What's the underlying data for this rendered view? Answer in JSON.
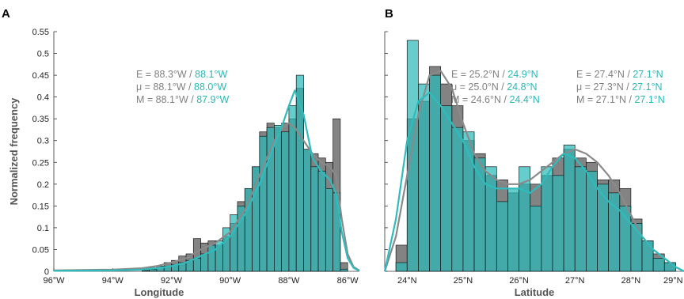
{
  "colors": {
    "gray": "#808080",
    "teal": "#2ab7b7",
    "gray_line": "#8a8a8a",
    "teal_line": "#2fbcbc"
  },
  "chart_data": [
    {
      "type": "bar",
      "panel": "A",
      "xlabel": "Longitude",
      "ylabel": "Normalized frequency",
      "xlim": [
        -96,
        -85.6
      ],
      "ylim": [
        0,
        0.55
      ],
      "xticks": [
        -96,
        -94,
        -92,
        -90,
        -88,
        -86
      ],
      "xtick_labels": [
        "96°W",
        "94°W",
        "92°W",
        "90°W",
        "88°W",
        "86°W"
      ],
      "yticks": [
        0,
        0.05,
        0.1,
        0.15,
        0.2,
        0.25,
        0.3,
        0.35,
        0.4,
        0.45,
        0.5,
        0.55
      ],
      "ytick_labels": [
        "0",
        "0.05",
        "0.1",
        "0.15",
        "0.2",
        "0.25",
        "0.3",
        "0.35",
        "0.4",
        "0.45",
        "0.5",
        "0.55"
      ],
      "bin_edges": [
        -93.0,
        -92.75,
        -92.5,
        -92.25,
        -92.0,
        -91.75,
        -91.5,
        -91.25,
        -91.0,
        -90.75,
        -90.5,
        -90.25,
        -90.0,
        -89.75,
        -89.5,
        -89.25,
        -89.0,
        -88.75,
        -88.5,
        -88.25,
        -88.0,
        -87.75,
        -87.5,
        -87.25,
        -87.0,
        -86.75,
        -86.5,
        -86.25,
        -86.0
      ],
      "series": [
        {
          "name": "",
          "color": "gray",
          "values": [
            0.005,
            0.008,
            0.012,
            0.02,
            0.025,
            0.035,
            0.04,
            0.075,
            0.065,
            0.07,
            0.06,
            0.08,
            0.11,
            0.16,
            0.19,
            0.24,
            0.32,
            0.34,
            0.33,
            0.34,
            0.35,
            0.42,
            0.28,
            0.27,
            0.26,
            0.25,
            0.35,
            0.02
          ]
        },
        {
          "name": "",
          "color": "teal",
          "values": [
            0.002,
            0.004,
            0.008,
            0.012,
            0.015,
            0.02,
            0.025,
            0.03,
            0.04,
            0.06,
            0.07,
            0.1,
            0.13,
            0.15,
            0.19,
            0.24,
            0.31,
            0.33,
            0.335,
            0.32,
            0.38,
            0.45,
            0.28,
            0.24,
            0.23,
            0.19,
            0.18,
            0.005
          ]
        }
      ],
      "curves": [
        {
          "color": "gray_line",
          "x": [
            -96,
            -94,
            -93,
            -92.5,
            -92,
            -91.5,
            -91,
            -90.5,
            -90,
            -89.5,
            -89,
            -88.5,
            -88.2,
            -88,
            -87.8,
            -87.5,
            -87.2,
            -86.9,
            -86.6,
            -86.4,
            -86.2,
            -86.0,
            -85.8,
            -85.6
          ],
          "y": [
            0.002,
            0.004,
            0.007,
            0.012,
            0.02,
            0.03,
            0.05,
            0.065,
            0.09,
            0.14,
            0.22,
            0.3,
            0.33,
            0.34,
            0.33,
            0.3,
            0.27,
            0.25,
            0.24,
            0.22,
            0.12,
            0.04,
            0.01,
            0.002
          ]
        },
        {
          "color": "teal_line",
          "x": [
            -96,
            -94,
            -93,
            -92.5,
            -92,
            -91.5,
            -91,
            -90.5,
            -90,
            -89.5,
            -89,
            -88.5,
            -88.2,
            -88,
            -87.8,
            -87.5,
            -87.2,
            -86.9,
            -86.6,
            -86.4,
            -86.2,
            -86.0,
            -85.8,
            -85.6
          ],
          "y": [
            0.001,
            0.002,
            0.004,
            0.007,
            0.012,
            0.02,
            0.035,
            0.05,
            0.08,
            0.13,
            0.2,
            0.29,
            0.34,
            0.38,
            0.415,
            0.36,
            0.26,
            0.23,
            0.21,
            0.18,
            0.09,
            0.03,
            0.008,
            0.001
          ]
        }
      ],
      "annotations": [
        {
          "prefix": "E = ",
          "gray": "88.3°W",
          "sep": " / ",
          "teal": "88.1°W"
        },
        {
          "prefix": "μ = ",
          "gray": "88.1°W",
          "sep": " / ",
          "teal": "88.0°W"
        },
        {
          "prefix": "M = ",
          "gray": "88.1°W",
          "sep": " / ",
          "teal": "87.9°W"
        }
      ]
    },
    {
      "type": "bar",
      "panel": "B",
      "xlabel": "Latitude",
      "ylabel": "",
      "xlim": [
        23.6,
        28.95
      ],
      "ylim": [
        0,
        0.55
      ],
      "xticks": [
        24,
        25,
        26,
        27,
        28
      ],
      "xtick_labels": [
        "24°N",
        "25°N",
        "26°N",
        "27°N",
        "28°N"
      ],
      "yticks": [
        0,
        0.05,
        0.1,
        0.15,
        0.2,
        0.25,
        0.3,
        0.35,
        0.4,
        0.45,
        0.5,
        0.55
      ],
      "bin_edges": [
        23.8,
        24.0,
        24.2,
        24.4,
        24.6,
        24.8,
        25.0,
        25.2,
        25.4,
        25.6,
        25.8,
        26.0,
        26.2,
        26.4,
        26.6,
        26.8,
        27.0,
        27.2,
        27.4,
        27.6,
        27.8,
        28.0,
        28.2,
        28.4,
        28.6,
        28.8
      ],
      "series": [
        {
          "name": "",
          "color": "gray",
          "values": [
            0.06,
            0.35,
            0.39,
            0.47,
            0.43,
            0.38,
            0.3,
            0.27,
            0.22,
            0.21,
            0.18,
            0.2,
            0.2,
            0.22,
            0.26,
            0.28,
            0.26,
            0.25,
            0.21,
            0.21,
            0.19,
            0.12,
            0.07,
            0.04,
            0.02
          ]
        },
        {
          "name": "",
          "color": "teal",
          "values": [
            0.02,
            0.53,
            0.43,
            0.45,
            0.38,
            0.33,
            0.32,
            0.26,
            0.24,
            0.16,
            0.19,
            0.24,
            0.15,
            0.24,
            0.22,
            0.29,
            0.24,
            0.23,
            0.2,
            0.18,
            0.15,
            0.11,
            0.07,
            0.03,
            0.02
          ]
        }
      ],
      "curves": [
        {
          "color": "gray_line",
          "x": [
            23.6,
            23.8,
            24.0,
            24.2,
            24.4,
            24.6,
            24.8,
            25.0,
            25.2,
            25.4,
            25.6,
            25.8,
            26.0,
            26.2,
            26.4,
            26.6,
            26.8,
            27.0,
            27.2,
            27.4,
            27.6,
            27.8,
            28.0,
            28.2,
            28.4,
            28.6,
            28.8,
            28.95
          ],
          "y": [
            0.0,
            0.08,
            0.22,
            0.36,
            0.45,
            0.46,
            0.42,
            0.34,
            0.27,
            0.23,
            0.21,
            0.2,
            0.2,
            0.21,
            0.23,
            0.25,
            0.27,
            0.28,
            0.27,
            0.25,
            0.22,
            0.18,
            0.13,
            0.08,
            0.05,
            0.03,
            0.01,
            0.0
          ]
        },
        {
          "color": "teal_line",
          "x": [
            23.6,
            23.8,
            24.0,
            24.2,
            24.4,
            24.6,
            24.8,
            25.0,
            25.2,
            25.4,
            25.6,
            25.8,
            26.0,
            26.2,
            26.4,
            26.6,
            26.8,
            27.0,
            27.2,
            27.4,
            27.6,
            27.8,
            28.0,
            28.2,
            28.4,
            28.6,
            28.8,
            28.95
          ],
          "y": [
            0.0,
            0.12,
            0.3,
            0.39,
            0.41,
            0.38,
            0.34,
            0.3,
            0.24,
            0.2,
            0.19,
            0.19,
            0.19,
            0.18,
            0.2,
            0.24,
            0.27,
            0.26,
            0.23,
            0.19,
            0.16,
            0.14,
            0.11,
            0.08,
            0.05,
            0.03,
            0.01,
            0.0
          ]
        }
      ],
      "annotations": [
        {
          "prefix": "E = ",
          "gray": "25.2°N",
          "sep": " / ",
          "teal": "24.9°N"
        },
        {
          "prefix": "μ = ",
          "gray": "25.0°N",
          "sep": " / ",
          "teal": "24.8°N"
        },
        {
          "prefix": "M = ",
          "gray": "24.6°N",
          "sep": " / ",
          "teal": "24.4°N"
        }
      ],
      "annotations2": [
        {
          "prefix": "E = ",
          "gray": "27.4°N",
          "sep": " / ",
          "teal": "27.1°N"
        },
        {
          "prefix": "μ = ",
          "gray": "27.3°N",
          "sep": " / ",
          "teal": "27.1°N"
        },
        {
          "prefix": "M = ",
          "gray": "27.1°N",
          "sep": " / ",
          "teal": "27.1°N"
        }
      ],
      "xtick_overflow_label": "29°N"
    }
  ],
  "panels": {
    "a_label": "A",
    "b_label": "B"
  }
}
